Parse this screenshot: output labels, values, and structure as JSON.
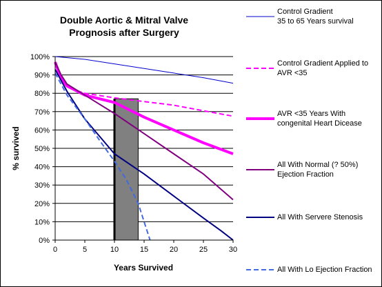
{
  "chart_data": {
    "type": "line",
    "title_lines": [
      "Double Aortic & Mitral Valve",
      "Prognosis after Surgery"
    ],
    "xlabel": "Years Survived",
    "ylabel": "% survived",
    "xlim": [
      0,
      30
    ],
    "ylim": [
      0,
      100
    ],
    "x_ticks": [
      0,
      5,
      10,
      15,
      20,
      25,
      30
    ],
    "y_ticks": [
      0,
      10,
      20,
      30,
      40,
      50,
      60,
      70,
      80,
      90,
      100
    ],
    "y_tick_labels": [
      "0%",
      "10%",
      "20%",
      "30%",
      "40%",
      "50%",
      "60%",
      "70%",
      "80%",
      "90%",
      "100%"
    ],
    "grid": "horizontal",
    "legend_position": "right",
    "series": [
      {
        "name": "Control Gradient 35 to 65 Years survival",
        "legend_lines": [
          "Control Gradient",
          "35 to 65 Years survival"
        ],
        "color": "#0000cc",
        "style": "solid",
        "width": "thin",
        "points": [
          [
            0,
            100
          ],
          [
            5,
            98.5
          ],
          [
            10,
            96
          ],
          [
            15,
            93.5
          ],
          [
            20,
            91
          ],
          [
            25,
            88.5
          ],
          [
            30,
            85.5
          ]
        ]
      },
      {
        "name": "Control Gradient Applied to AVR <35",
        "legend_lines": [
          "Control Gradient Applied to",
          "AVR <35"
        ],
        "color": "#ff00ff",
        "style": "dashed",
        "width": "medium",
        "points": [
          [
            0,
            97
          ],
          [
            1,
            88
          ],
          [
            3,
            82
          ],
          [
            5,
            80
          ],
          [
            10,
            77.5
          ],
          [
            15,
            75.5
          ],
          [
            20,
            73.5
          ],
          [
            25,
            70.5
          ],
          [
            30,
            67.5
          ]
        ]
      },
      {
        "name": "AVR <35 Years With congenital Heart Dicease",
        "legend_lines": [
          "AVR <35 Years With",
          "congenital Heart Dicease"
        ],
        "color": "#ff00ff",
        "style": "solid",
        "width": "thick",
        "points": [
          [
            0,
            97
          ],
          [
            1,
            88
          ],
          [
            2,
            84
          ],
          [
            5,
            79
          ],
          [
            10,
            75
          ],
          [
            15,
            67
          ],
          [
            20,
            60
          ],
          [
            25,
            53
          ],
          [
            30,
            47
          ]
        ]
      },
      {
        "name": "All With Normal (? 50%) Ejection Fraction",
        "legend_lines": [
          "All With Normal (? 50%)",
          "Ejection Fraction"
        ],
        "color": "#800080",
        "style": "solid",
        "width": "medium",
        "points": [
          [
            0,
            97
          ],
          [
            1,
            90
          ],
          [
            2,
            85
          ],
          [
            5,
            79
          ],
          [
            10,
            69
          ],
          [
            15,
            58
          ],
          [
            20,
            47
          ],
          [
            25,
            36
          ],
          [
            30,
            22
          ]
        ]
      },
      {
        "name": "All With Servere Stenosis",
        "legend_lines": [
          "All With Servere Stenosis"
        ],
        "color": "#000080",
        "style": "solid",
        "width": "medium",
        "points": [
          [
            0,
            93
          ],
          [
            2,
            81
          ],
          [
            5,
            66
          ],
          [
            10,
            47
          ],
          [
            15,
            36
          ],
          [
            20,
            24
          ],
          [
            25,
            12
          ],
          [
            28,
            5
          ],
          [
            30,
            0
          ]
        ]
      },
      {
        "name": "All With Lo Ejection Fraction",
        "legend_lines": [
          "All With  Lo Ejection Fraction"
        ],
        "color": "#4169e1",
        "style": "dashed",
        "width": "medium",
        "points": [
          [
            0,
            91
          ],
          [
            2,
            79
          ],
          [
            5,
            66
          ],
          [
            8,
            52
          ],
          [
            10,
            43
          ],
          [
            12,
            33
          ],
          [
            14,
            20
          ],
          [
            15,
            10
          ],
          [
            16,
            0
          ]
        ]
      }
    ],
    "annotations": [
      {
        "type": "shaded-bar",
        "x_start": 10,
        "x_end": 14,
        "y": 77,
        "color": "#808080"
      }
    ]
  }
}
